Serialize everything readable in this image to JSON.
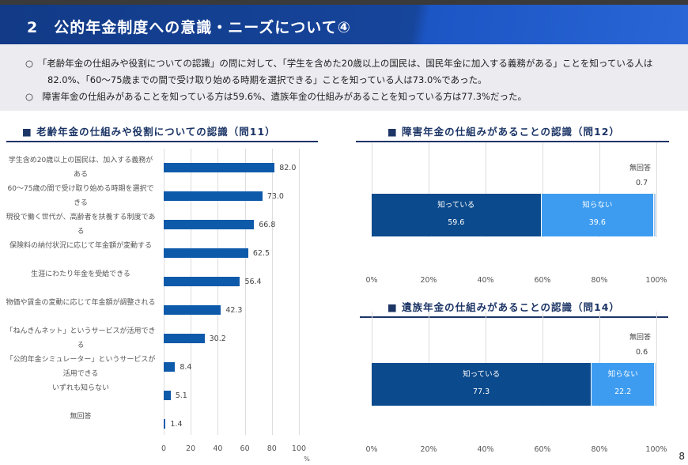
{
  "header": {
    "title": "2　公的年金制度への意識・ニーズについて④"
  },
  "summary": [
    "○　「老齢年金の仕組みや役割についての認識」の問に対して、「学生を含めた20歳以上の国民は、国民年金に加入する義務がある」ことを知っている人は82.0%、「60～75歳までの間で受け取り始める時期を選択できる」ことを知っている人は73.0%であった。",
    "○　障害年金の仕組みがあることを知っている方は59.6%、遺族年金の仕組みがあることを知っている方は77.3%だった。"
  ],
  "page_number": "8",
  "chart_data": [
    {
      "type": "bar",
      "orientation": "horizontal",
      "title": "■ 老齢年金の仕組みや役割についての認識（問11）",
      "categories": [
        "学生含め20歳以上の国民は、加入する義務がある",
        "60～75歳の間で受け取り始める時期を選択できる",
        "現役で働く世代が、高齢者を扶養する制度である",
        "保険料の納付状況に応じて年金額が変動する",
        "生涯にわたり年金を受給できる",
        "物価や賃金の変動に応じて年金額が調整される",
        "「ねんきんネット」というサービスが活用できる",
        "「公的年金シミュレーター」というサービスが活用できる",
        "いずれも知らない",
        "無回答"
      ],
      "values": [
        82.0,
        73.0,
        66.8,
        62.5,
        56.4,
        42.3,
        30.2,
        8.4,
        5.1,
        1.4
      ],
      "value_labels": [
        "82.0",
        "73.0",
        "66.8",
        "62.5",
        "56.4",
        "42.3",
        "30.2",
        "8.4",
        "5.1",
        "1.4"
      ],
      "xlim": [
        0,
        100
      ],
      "xticks": [
        "0",
        "20",
        "40",
        "60",
        "80",
        "100"
      ],
      "xlabel": "%",
      "color": "#0e5aaa",
      "grid": true
    },
    {
      "type": "bar",
      "orientation": "horizontal",
      "stacked": true,
      "title": "■ 障害年金の仕組みがあることの認識（問12）",
      "series": [
        {
          "name": "知っている",
          "value": 59.6,
          "label": "59.6",
          "color": "#0b4a8c"
        },
        {
          "name": "知らない",
          "value": 39.6,
          "label": "39.6",
          "color": "#3d9cf0"
        },
        {
          "name": "無回答",
          "value": 0.7,
          "label": "0.7",
          "color": "#a8c8ee"
        }
      ],
      "xlim": [
        0,
        100
      ],
      "xticks": [
        "0%",
        "20%",
        "40%",
        "60%",
        "80%",
        "100%"
      ],
      "grid": true
    },
    {
      "type": "bar",
      "orientation": "horizontal",
      "stacked": true,
      "title": "■ 遺族年金の仕組みがあることの認識（問14）",
      "series": [
        {
          "name": "知っている",
          "value": 77.3,
          "label": "77.3",
          "color": "#0b4a8c"
        },
        {
          "name": "知らない",
          "value": 22.2,
          "label": "22.2",
          "color": "#3d9cf0"
        },
        {
          "name": "無回答",
          "value": 0.6,
          "label": "0.6",
          "color": "#a8c8ee"
        }
      ],
      "xlim": [
        0,
        100
      ],
      "xticks": [
        "0%",
        "20%",
        "40%",
        "60%",
        "80%",
        "100%"
      ],
      "grid": true
    }
  ]
}
